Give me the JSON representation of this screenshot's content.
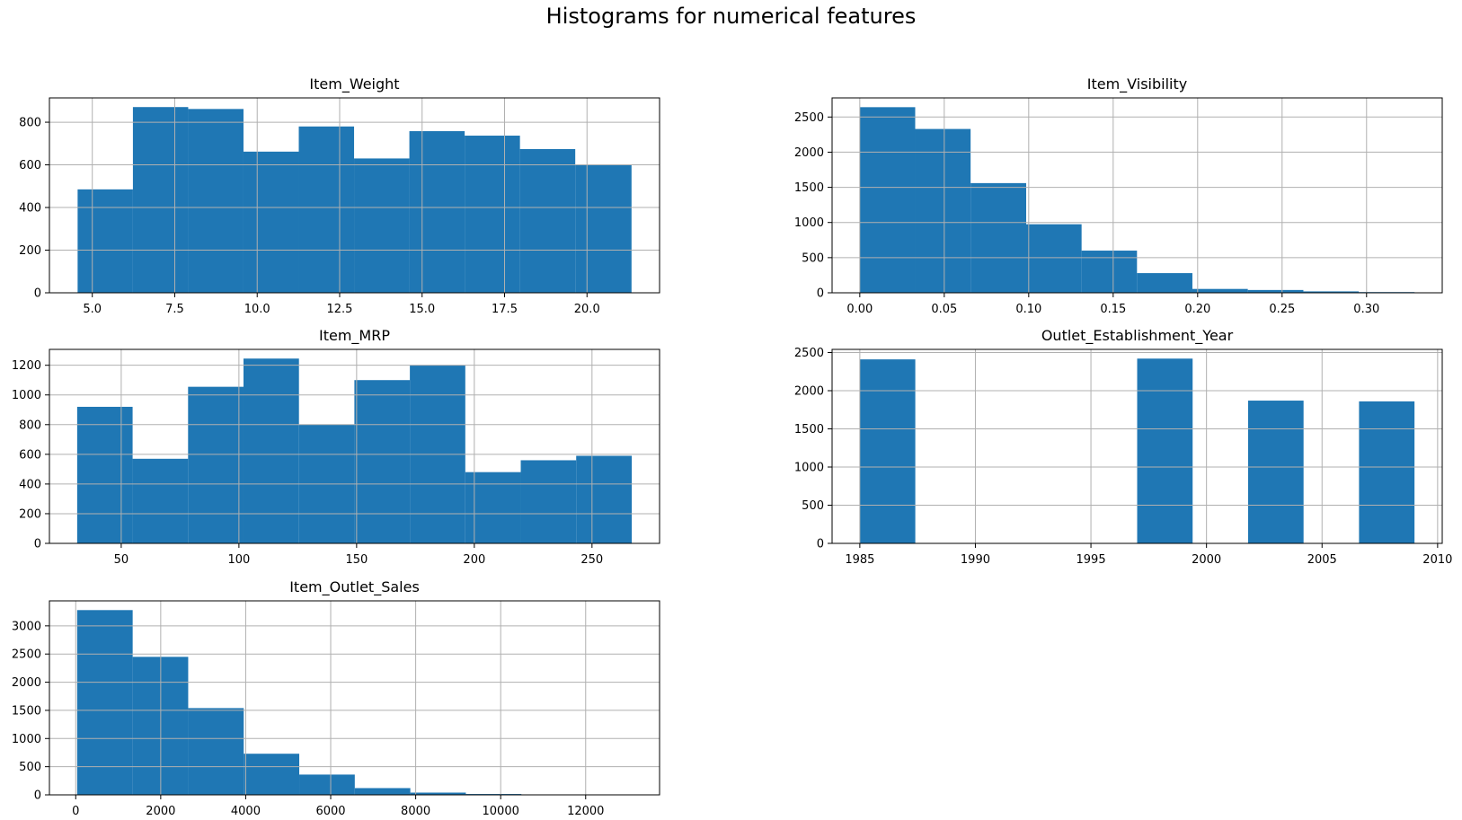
{
  "suptitle": "Histograms for numerical features",
  "bar_color": "#1f77b4",
  "grid_color": "#b0b0b0",
  "chart_data": [
    {
      "type": "bar",
      "title": "Item_Weight",
      "bin_edges": [
        4.555,
        6.2315,
        7.908,
        9.5845,
        11.261,
        12.9375,
        14.614,
        16.2905,
        17.967,
        19.6435,
        21.35
      ],
      "counts": [
        485,
        871,
        862,
        662,
        780,
        630,
        758,
        737,
        674,
        601
      ],
      "xlim": [
        3.7,
        22.2
      ],
      "ylim": [
        0,
        914
      ],
      "xticks": [
        5.0,
        7.5,
        10.0,
        12.5,
        15.0,
        17.5,
        20.0
      ],
      "xtick_labels": [
        "5.0",
        "7.5",
        "10.0",
        "12.5",
        "15.0",
        "17.5",
        "20.0"
      ],
      "yticks": [
        0,
        200,
        400,
        600,
        800
      ],
      "ytick_labels": [
        "0",
        "200",
        "400",
        "600",
        "800"
      ],
      "grid": true
    },
    {
      "type": "bar",
      "title": "Item_Visibility",
      "bin_edges": [
        0.0,
        0.0328,
        0.0656,
        0.0985,
        0.1313,
        0.1641,
        0.1969,
        0.2297,
        0.2626,
        0.2954,
        0.3284
      ],
      "counts": [
        2640,
        2330,
        1560,
        975,
        600,
        280,
        55,
        40,
        20,
        10
      ],
      "xlim": [
        -0.0164,
        0.3448
      ],
      "ylim": [
        0,
        2772
      ],
      "xticks": [
        0.0,
        0.05,
        0.1,
        0.15,
        0.2,
        0.25,
        0.3
      ],
      "xtick_labels": [
        "0.00",
        "0.05",
        "0.10",
        "0.15",
        "0.20",
        "0.25",
        "0.30"
      ],
      "yticks": [
        0,
        500,
        1000,
        1500,
        2000,
        2500
      ],
      "ytick_labels": [
        "0",
        "500",
        "1000",
        "1500",
        "2000",
        "2500"
      ],
      "grid": true
    },
    {
      "type": "bar",
      "title": "Item_MRP",
      "bin_edges": [
        31.29,
        54.84,
        78.4,
        101.95,
        125.51,
        149.06,
        172.62,
        196.17,
        219.73,
        243.28,
        266.89
      ],
      "counts": [
        920,
        570,
        1055,
        1245,
        800,
        1100,
        1200,
        480,
        560,
        590
      ],
      "xlim": [
        19.5,
        278.7
      ],
      "ylim": [
        0,
        1307
      ],
      "xticks": [
        50,
        100,
        150,
        200,
        250
      ],
      "xtick_labels": [
        "50",
        "100",
        "150",
        "200",
        "250"
      ],
      "yticks": [
        0,
        200,
        400,
        600,
        800,
        1000,
        1200
      ],
      "ytick_labels": [
        "0",
        "200",
        "400",
        "600",
        "800",
        "1000",
        "1200"
      ],
      "grid": true
    },
    {
      "type": "bar",
      "title": "Outlet_Establishment_Year",
      "bin_edges": [
        1985,
        1987.4,
        1989.8,
        1992.2,
        1994.6,
        1997,
        1999.4,
        2001.8,
        2004.2,
        2006.6,
        2009
      ],
      "counts": [
        2410,
        0,
        0,
        0,
        0,
        2420,
        0,
        1870,
        0,
        1860
      ],
      "xlim": [
        1983.8,
        2010.2
      ],
      "ylim": [
        0,
        2541
      ],
      "xticks": [
        1985,
        1990,
        1995,
        2000,
        2005,
        2010
      ],
      "xtick_labels": [
        "1985",
        "1990",
        "1995",
        "2000",
        "2005",
        "2010"
      ],
      "yticks": [
        0,
        500,
        1000,
        1500,
        2000,
        2500
      ],
      "ytick_labels": [
        "0",
        "500",
        "1000",
        "1500",
        "2000",
        "2500"
      ],
      "grid": true
    },
    {
      "type": "bar",
      "title": "Item_Outlet_Sales",
      "bin_edges": [
        33.29,
        1340.01,
        2646.73,
        3953.45,
        5260.17,
        6566.89,
        7873.61,
        9180.33,
        10487.05,
        11793.77,
        13086.96
      ],
      "counts": [
        3280,
        2450,
        1540,
        730,
        360,
        120,
        40,
        15,
        5,
        3
      ],
      "xlim": [
        -619,
        13739
      ],
      "ylim": [
        0,
        3444
      ],
      "xticks": [
        0,
        2000,
        4000,
        6000,
        8000,
        10000,
        12000
      ],
      "xtick_labels": [
        "0",
        "2000",
        "4000",
        "6000",
        "8000",
        "10000",
        "12000"
      ],
      "yticks": [
        0,
        500,
        1000,
        1500,
        2000,
        2500,
        3000
      ],
      "ytick_labels": [
        "0",
        "500",
        "1000",
        "1500",
        "2000",
        "2500",
        "3000"
      ],
      "grid": true
    }
  ]
}
